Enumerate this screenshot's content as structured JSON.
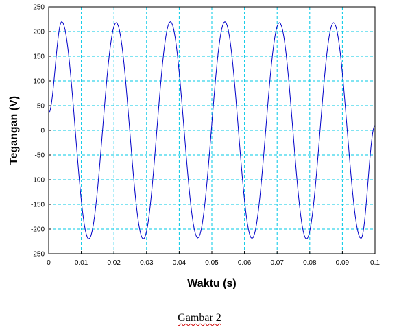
{
  "chart_data": {
    "type": "line",
    "title": "",
    "xlabel": "Waktu (s)",
    "ylabel": "Tegangan (V)",
    "xlim": [
      0,
      0.1
    ],
    "ylim": [
      -250,
      250
    ],
    "x_ticks": [
      0,
      0.01,
      0.02,
      0.03,
      0.04,
      0.05,
      0.06,
      0.07,
      0.08,
      0.09,
      0.1
    ],
    "x_tick_labels": [
      "0",
      "0.01",
      "0.02",
      "0.03",
      "0.04",
      "0.05",
      "0.06",
      "0.07",
      "0.08",
      "0.09",
      "0.1"
    ],
    "y_ticks": [
      250,
      200,
      150,
      100,
      50,
      0,
      -50,
      -100,
      -150,
      -200,
      -250
    ],
    "y_tick_labels": [
      "250",
      "200",
      "150",
      "100",
      "50",
      "0",
      "-50",
      "-100",
      "-150",
      "-200",
      "-250"
    ],
    "grid": true,
    "series": [
      {
        "x": [
          0,
          0.004,
          0.0123,
          0.0207,
          0.029,
          0.0373,
          0.0457,
          0.054,
          0.0623,
          0.0707,
          0.079,
          0.0873,
          0.0957,
          0.1
        ],
        "y": [
          35,
          220,
          -220,
          218,
          -220,
          220,
          -218,
          220,
          -219,
          218,
          -220,
          218,
          -219,
          10
        ],
        "shape": "sine",
        "color": "#0000c8"
      }
    ],
    "colors": {
      "line": "#0000c8",
      "grid": "#00c8e6",
      "axes": "#000000",
      "background": "#ffffff"
    }
  },
  "caption": "Gambar 2"
}
